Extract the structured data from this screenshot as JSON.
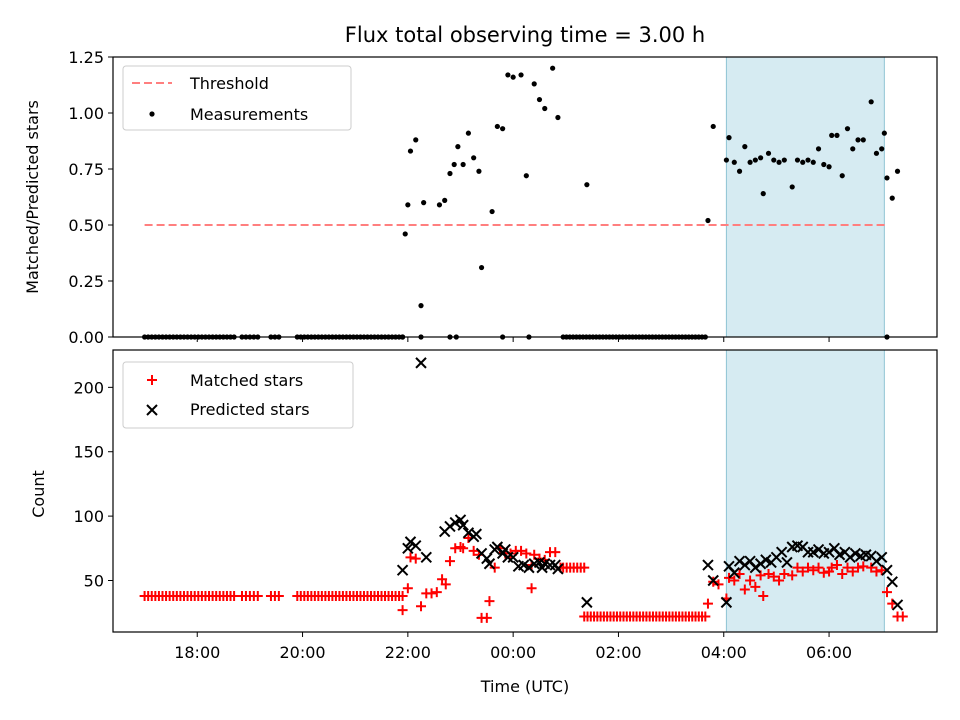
{
  "chart_data": [
    {
      "type": "scatter",
      "title": "Flux total observing time = 3.00 h",
      "ylabel": "Matched/Predicted stars",
      "xlabel": "",
      "xlim": [
        -7.6,
        8.05
      ],
      "ylim": [
        0.0,
        1.25
      ],
      "x_ticks": [
        -6,
        -4,
        -2,
        0,
        2,
        4,
        6
      ],
      "y_ticks": [
        0.0,
        0.25,
        0.5,
        0.75,
        1.0,
        1.25
      ],
      "y_tick_labels": [
        "0.00",
        "0.25",
        "0.50",
        "0.75",
        "1.00",
        "1.25"
      ],
      "shaded_span": [
        4.05,
        7.05
      ],
      "threshold": {
        "name": "Threshold",
        "value": 0.5,
        "x_range": [
          -7.0,
          7.1
        ],
        "color": "#ff7f7f"
      },
      "legend": {
        "placement": "upper left",
        "entries": [
          "Threshold",
          "Measurements"
        ]
      },
      "series": [
        {
          "name": "Measurements",
          "color": "#000000",
          "zero_runs": [
            {
              "x_start": -7.0,
              "x_end": -5.3,
              "n": 26
            },
            {
              "x_start": -5.15,
              "x_end": -4.85,
              "n": 5
            },
            {
              "x_start": -4.6,
              "x_end": -4.45,
              "n": 3
            },
            {
              "x_start": -4.1,
              "x_end": -2.1,
              "n": 31
            },
            {
              "x_start": 0.95,
              "x_end": 3.65,
              "n": 44
            }
          ],
          "points": [
            [
              -2.1,
              0.0
            ],
            [
              -1.75,
              0.0
            ],
            [
              -1.2,
              0.0
            ],
            [
              -1.08,
              0.0
            ],
            [
              -0.2,
              0.0
            ],
            [
              0.3,
              0.0
            ],
            [
              7.1,
              0.0
            ],
            [
              -2.05,
              0.46
            ],
            [
              -2.0,
              0.59
            ],
            [
              -1.95,
              0.83
            ],
            [
              -1.85,
              0.88
            ],
            [
              -1.75,
              0.14
            ],
            [
              -1.7,
              0.6
            ],
            [
              -1.4,
              0.59
            ],
            [
              -1.3,
              0.61
            ],
            [
              -1.2,
              0.73
            ],
            [
              -1.12,
              0.77
            ],
            [
              -1.05,
              0.85
            ],
            [
              -0.95,
              0.77
            ],
            [
              -0.85,
              0.91
            ],
            [
              -0.75,
              0.8
            ],
            [
              -0.65,
              0.74
            ],
            [
              -0.6,
              0.31
            ],
            [
              -0.4,
              0.56
            ],
            [
              -0.3,
              0.94
            ],
            [
              -0.2,
              0.93
            ],
            [
              -0.1,
              1.17
            ],
            [
              0.0,
              1.16
            ],
            [
              0.15,
              1.17
            ],
            [
              0.25,
              0.72
            ],
            [
              0.4,
              1.13
            ],
            [
              0.5,
              1.06
            ],
            [
              0.6,
              1.02
            ],
            [
              0.75,
              1.2
            ],
            [
              0.85,
              0.98
            ],
            [
              1.4,
              0.68
            ],
            [
              3.7,
              0.52
            ],
            [
              3.8,
              0.94
            ],
            [
              4.05,
              0.79
            ],
            [
              4.1,
              0.89
            ],
            [
              4.2,
              0.78
            ],
            [
              4.3,
              0.74
            ],
            [
              4.4,
              0.85
            ],
            [
              4.5,
              0.78
            ],
            [
              4.6,
              0.79
            ],
            [
              4.7,
              0.8
            ],
            [
              4.75,
              0.64
            ],
            [
              4.85,
              0.82
            ],
            [
              4.95,
              0.79
            ],
            [
              5.05,
              0.78
            ],
            [
              5.15,
              0.79
            ],
            [
              5.3,
              0.67
            ],
            [
              5.4,
              0.79
            ],
            [
              5.5,
              0.78
            ],
            [
              5.6,
              0.79
            ],
            [
              5.7,
              0.78
            ],
            [
              5.8,
              0.84
            ],
            [
              5.9,
              0.77
            ],
            [
              6.0,
              0.76
            ],
            [
              6.05,
              0.9
            ],
            [
              6.15,
              0.9
            ],
            [
              6.25,
              0.72
            ],
            [
              6.35,
              0.93
            ],
            [
              6.45,
              0.84
            ],
            [
              6.55,
              0.88
            ],
            [
              6.65,
              0.88
            ],
            [
              6.8,
              1.05
            ],
            [
              6.9,
              0.82
            ],
            [
              7.0,
              0.84
            ],
            [
              7.05,
              0.91
            ],
            [
              7.1,
              0.71
            ],
            [
              7.2,
              0.62
            ],
            [
              7.3,
              0.74
            ]
          ]
        }
      ]
    },
    {
      "type": "scatter",
      "title": "",
      "ylabel": "Count",
      "xlabel": "Time (UTC)",
      "xlim": [
        -7.6,
        8.05
      ],
      "ylim": [
        10,
        229
      ],
      "x_ticks": [
        -6,
        -4,
        -2,
        0,
        2,
        4,
        6
      ],
      "x_tick_labels": [
        "18:00",
        "20:00",
        "22:00",
        "00:00",
        "02:00",
        "04:00",
        "06:00"
      ],
      "y_ticks": [
        50,
        100,
        150,
        200
      ],
      "y_tick_labels": [
        "50",
        "100",
        "150",
        "200"
      ],
      "shaded_span": [
        4.05,
        7.05
      ],
      "legend": {
        "placement": "upper left",
        "entries": [
          "Matched stars",
          "Predicted stars"
        ]
      },
      "series": [
        {
          "name": "Matched stars",
          "color": "#ff0000",
          "marker": "+",
          "constant_runs": [
            {
              "x_start": -7.0,
              "x_end": -5.3,
              "n": 26,
              "y": 38
            },
            {
              "x_start": -5.15,
              "x_end": -4.85,
              "n": 5,
              "y": 38
            },
            {
              "x_start": -4.6,
              "x_end": -4.45,
              "n": 3,
              "y": 38
            },
            {
              "x_start": -4.1,
              "x_end": -2.1,
              "n": 31,
              "y": 38
            },
            {
              "x_start": 0.95,
              "x_end": 1.35,
              "n": 7,
              "y": 60
            },
            {
              "x_start": 1.35,
              "x_end": 3.65,
              "n": 38,
              "y": 22
            }
          ],
          "points": [
            [
              -2.1,
              27
            ],
            [
              -2.0,
              44
            ],
            [
              -1.95,
              68
            ],
            [
              -1.85,
              67
            ],
            [
              -1.75,
              30
            ],
            [
              -1.65,
              40
            ],
            [
              -1.55,
              40
            ],
            [
              -1.45,
              41
            ],
            [
              -1.35,
              51
            ],
            [
              -1.28,
              47
            ],
            [
              -1.2,
              65
            ],
            [
              -1.1,
              75
            ],
            [
              -1.0,
              76
            ],
            [
              -0.95,
              75
            ],
            [
              -0.85,
              83
            ],
            [
              -0.75,
              73
            ],
            [
              -0.65,
              70
            ],
            [
              -0.6,
              21
            ],
            [
              -0.5,
              21
            ],
            [
              -0.45,
              34
            ],
            [
              -0.35,
              60
            ],
            [
              -0.25,
              75
            ],
            [
              -0.15,
              71
            ],
            [
              -0.05,
              71
            ],
            [
              0.05,
              73
            ],
            [
              0.15,
              73
            ],
            [
              0.25,
              71
            ],
            [
              0.35,
              62
            ],
            [
              0.4,
              70
            ],
            [
              0.5,
              67
            ],
            [
              0.6,
              66
            ],
            [
              0.7,
              72
            ],
            [
              0.8,
              72
            ],
            [
              0.9,
              60
            ],
            [
              0.35,
              44
            ],
            [
              3.7,
              32
            ],
            [
              3.8,
              49
            ],
            [
              3.9,
              47
            ],
            [
              4.05,
              36
            ],
            [
              4.1,
              52
            ],
            [
              4.2,
              50
            ],
            [
              4.3,
              55
            ],
            [
              4.4,
              43
            ],
            [
              4.5,
              50
            ],
            [
              4.6,
              45
            ],
            [
              4.7,
              54
            ],
            [
              4.75,
              38
            ],
            [
              4.85,
              55
            ],
            [
              4.95,
              53
            ],
            [
              5.05,
              50
            ],
            [
              5.15,
              55
            ],
            [
              5.3,
              54
            ],
            [
              5.4,
              60
            ],
            [
              5.5,
              57
            ],
            [
              5.6,
              60
            ],
            [
              5.7,
              58
            ],
            [
              5.8,
              60
            ],
            [
              5.9,
              56
            ],
            [
              6.0,
              57
            ],
            [
              6.05,
              60
            ],
            [
              6.15,
              62
            ],
            [
              6.25,
              55
            ],
            [
              6.35,
              60
            ],
            [
              6.45,
              57
            ],
            [
              6.55,
              60
            ],
            [
              6.65,
              61
            ],
            [
              6.8,
              60
            ],
            [
              6.9,
              57
            ],
            [
              7.0,
              58
            ],
            [
              7.1,
              41
            ],
            [
              7.2,
              32
            ],
            [
              7.3,
              22
            ],
            [
              7.4,
              22
            ]
          ]
        },
        {
          "name": "Predicted stars",
          "color": "#000000",
          "marker": "x",
          "points": [
            [
              -2.1,
              58
            ],
            [
              -2.0,
              75
            ],
            [
              -1.95,
              80
            ],
            [
              -1.85,
              77
            ],
            [
              -1.75,
              219
            ],
            [
              -1.65,
              68
            ],
            [
              -1.3,
              88
            ],
            [
              -1.2,
              92
            ],
            [
              -1.1,
              95
            ],
            [
              -1.0,
              97
            ],
            [
              -0.95,
              93
            ],
            [
              -0.85,
              87
            ],
            [
              -0.75,
              84
            ],
            [
              -0.7,
              86
            ],
            [
              -0.6,
              71
            ],
            [
              -0.5,
              67
            ],
            [
              -0.45,
              63
            ],
            [
              -0.35,
              74
            ],
            [
              -0.3,
              76
            ],
            [
              -0.2,
              71
            ],
            [
              -0.15,
              74
            ],
            [
              -0.1,
              68
            ],
            [
              0.0,
              68
            ],
            [
              0.1,
              61
            ],
            [
              0.2,
              62
            ],
            [
              0.3,
              60
            ],
            [
              0.4,
              63
            ],
            [
              0.5,
              64
            ],
            [
              0.55,
              60
            ],
            [
              0.6,
              63
            ],
            [
              0.7,
              62
            ],
            [
              0.8,
              62
            ],
            [
              0.85,
              59
            ],
            [
              1.4,
              33
            ],
            [
              3.7,
              62
            ],
            [
              3.8,
              50
            ],
            [
              4.05,
              33
            ],
            [
              4.1,
              61
            ],
            [
              4.2,
              56
            ],
            [
              4.3,
              65
            ],
            [
              4.4,
              62
            ],
            [
              4.5,
              65
            ],
            [
              4.6,
              60
            ],
            [
              4.7,
              63
            ],
            [
              4.8,
              66
            ],
            [
              4.9,
              64
            ],
            [
              5.0,
              68
            ],
            [
              5.1,
              72
            ],
            [
              5.2,
              64
            ],
            [
              5.3,
              76
            ],
            [
              5.4,
              77
            ],
            [
              5.5,
              76
            ],
            [
              5.6,
              72
            ],
            [
              5.7,
              72
            ],
            [
              5.8,
              74
            ],
            [
              5.9,
              71
            ],
            [
              6.0,
              72
            ],
            [
              6.1,
              75
            ],
            [
              6.2,
              70
            ],
            [
              6.3,
              72
            ],
            [
              6.4,
              68
            ],
            [
              6.5,
              71
            ],
            [
              6.6,
              69
            ],
            [
              6.7,
              70
            ],
            [
              6.8,
              69
            ],
            [
              6.9,
              65
            ],
            [
              7.0,
              68
            ],
            [
              7.1,
              58
            ],
            [
              7.2,
              49
            ],
            [
              7.3,
              31
            ]
          ]
        }
      ]
    }
  ]
}
